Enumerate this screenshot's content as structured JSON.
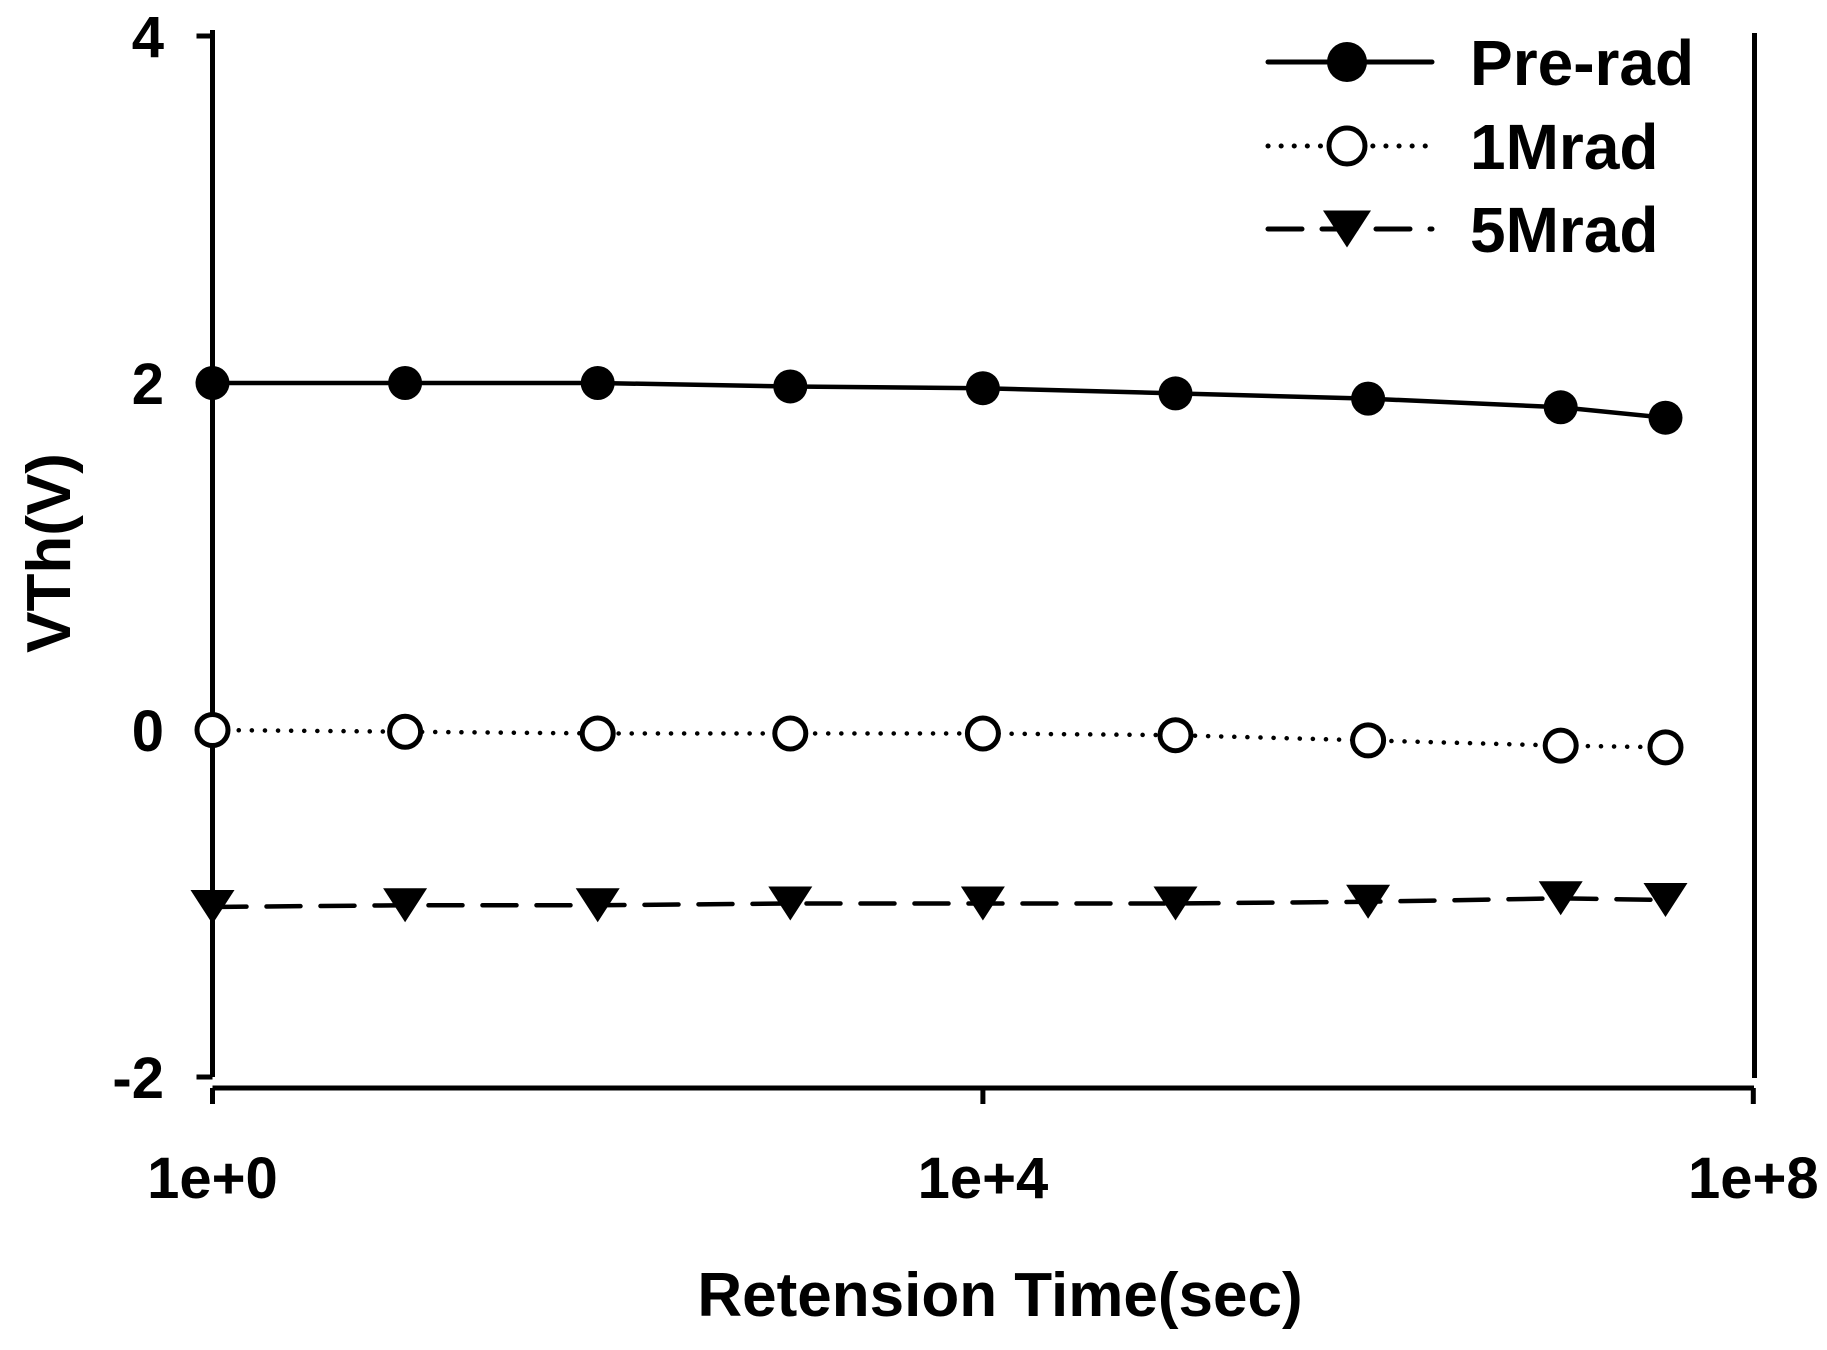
{
  "figure": {
    "background": "#ffffff",
    "ink_color": "#000000"
  },
  "chart_data": {
    "type": "line",
    "x_scale": "log",
    "x": [
      1,
      10,
      100,
      1000,
      10000,
      100000,
      1000000,
      10000000,
      35000000
    ],
    "xlabel": "Retension Time(sec)",
    "ylabel": "VTh(V)",
    "xlim": [
      1,
      100000000
    ],
    "ylim": [
      -2,
      4
    ],
    "x_ticks": {
      "values": [
        1,
        10000,
        100000000
      ],
      "labels": [
        "1e+0",
        "1e+4",
        "1e+8"
      ]
    },
    "y_ticks": {
      "values": [
        4,
        2,
        0,
        -2
      ],
      "labels": [
        "4",
        "2",
        "0",
        "-2"
      ]
    },
    "grid": false,
    "legend_position": "top-right",
    "series": [
      {
        "name": "Pre-rad",
        "marker": "filled-circle",
        "line_style": "solid",
        "color": "#000000",
        "values": [
          2.0,
          2.0,
          2.0,
          1.98,
          1.97,
          1.94,
          1.91,
          1.86,
          1.8
        ]
      },
      {
        "name": "1Mrad",
        "marker": "open-circle",
        "line_style": "dotted",
        "color": "#000000",
        "values": [
          0.0,
          -0.01,
          -0.02,
          -0.02,
          -0.02,
          -0.03,
          -0.06,
          -0.09,
          -0.1
        ]
      },
      {
        "name": "5Mrad",
        "marker": "filled-triangle-down",
        "line_style": "dashed",
        "color": "#000000",
        "values": [
          -1.02,
          -1.01,
          -1.01,
          -1.0,
          -1.0,
          -1.0,
          -0.99,
          -0.97,
          -0.98
        ]
      }
    ]
  }
}
